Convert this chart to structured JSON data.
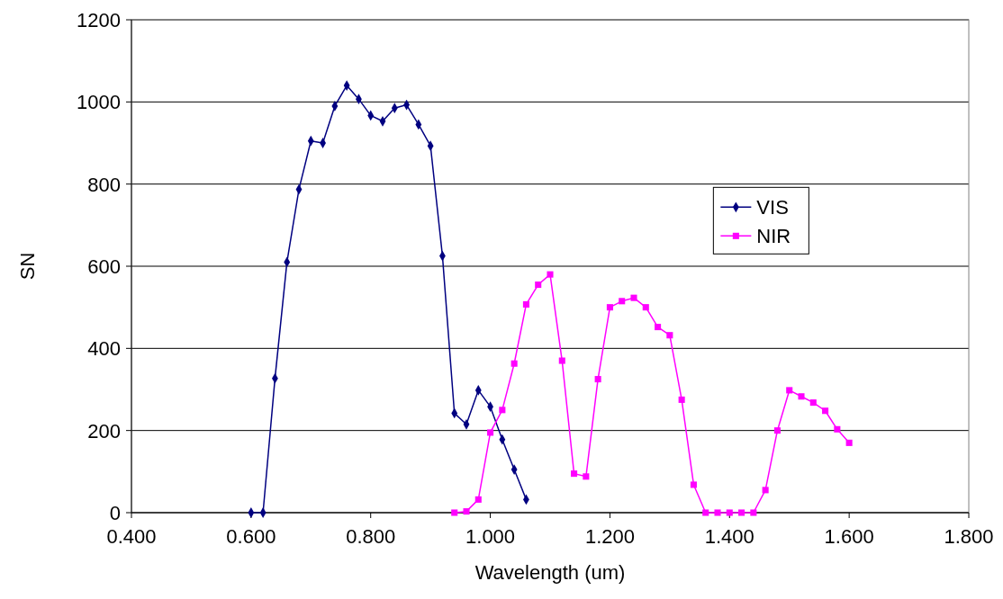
{
  "chart_data": {
    "type": "line",
    "xlabel": "Wavelength (um)",
    "ylabel": "SN",
    "xlim": [
      0.4,
      1.8
    ],
    "xticks": [
      {
        "value": 0.4,
        "label": "0.400"
      },
      {
        "value": 0.6,
        "label": "0.600"
      },
      {
        "value": 0.8,
        "label": "0.800"
      },
      {
        "value": 1.0,
        "label": "1.000"
      },
      {
        "value": 1.2,
        "label": "1.200"
      },
      {
        "value": 1.4,
        "label": "1.400"
      },
      {
        "value": 1.6,
        "label": "1.600"
      },
      {
        "value": 1.8,
        "label": "1.800"
      }
    ],
    "ylim": [
      0,
      1200
    ],
    "yticks": [
      0,
      200,
      400,
      600,
      800,
      1000,
      1200
    ],
    "grid": "y",
    "legend": "right",
    "marker": "diamond",
    "line_style": "solid",
    "series": [
      {
        "name": "VIS",
        "color": "#000080",
        "x": [
          0.6,
          0.62,
          0.64,
          0.66,
          0.68,
          0.7,
          0.72,
          0.74,
          0.76,
          0.78,
          0.8,
          0.82,
          0.84,
          0.86,
          0.88,
          0.9,
          0.92,
          0.94,
          0.96,
          0.98,
          1.0,
          1.02,
          1.04,
          1.06
        ],
        "values": [
          0,
          0,
          327,
          610,
          787,
          905,
          900,
          990,
          1040,
          1007,
          967,
          953,
          985,
          993,
          945,
          893,
          625,
          242,
          215,
          298,
          258,
          178,
          105,
          32
        ]
      },
      {
        "name": "NIR",
        "color": "#ff00ff",
        "marker": "square",
        "x": [
          0.94,
          0.96,
          0.98,
          1.0,
          1.02,
          1.04,
          1.06,
          1.08,
          1.1,
          1.12,
          1.14,
          1.16,
          1.18,
          1.2,
          1.22,
          1.24,
          1.26,
          1.28,
          1.3,
          1.32,
          1.34,
          1.36,
          1.38,
          1.4,
          1.42,
          1.44,
          1.46,
          1.48,
          1.5,
          1.52,
          1.54,
          1.56,
          1.58,
          1.6
        ],
        "values": [
          0,
          3,
          32,
          195,
          250,
          363,
          507,
          555,
          580,
          370,
          95,
          88,
          325,
          500,
          515,
          523,
          500,
          452,
          432,
          275,
          68,
          0,
          0,
          0,
          0,
          0,
          55,
          200,
          298,
          283,
          268,
          248,
          203,
          170
        ]
      }
    ]
  }
}
